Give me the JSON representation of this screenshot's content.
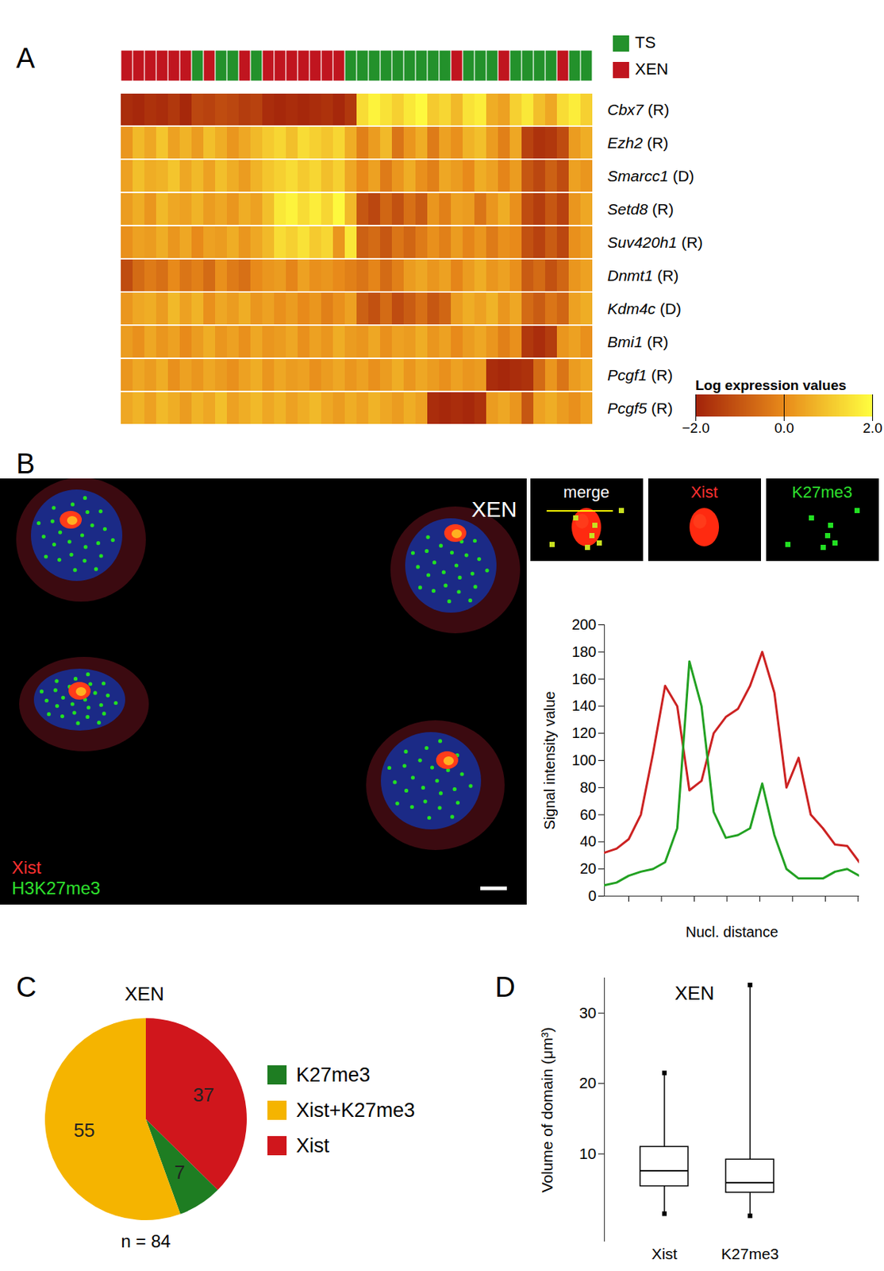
{
  "chart_data": [
    {
      "panel": "A",
      "type": "heatmap",
      "rows": [
        "Cbx7 (R)",
        "Ezh2 (R)",
        "Smarcc1 (D)",
        "Setd8 (R)",
        "Suv420h1 (R)",
        "Dnmt1 (R)",
        "Kdm4c (D)",
        "Bmi1 (R)",
        "Pcgf1 (R)",
        "Pcgf5 (R)"
      ],
      "samples": [
        "XEN",
        "XEN",
        "XEN",
        "XEN",
        "XEN",
        "XEN",
        "TS",
        "XEN",
        "TS",
        "TS",
        "XEN",
        "TS",
        "XEN",
        "XEN",
        "XEN",
        "XEN",
        "XEN",
        "XEN",
        "XEN",
        "TS",
        "TS",
        "TS",
        "TS",
        "TS",
        "TS",
        "TS",
        "TS",
        "TS",
        "XEN",
        "TS",
        "TS",
        "TS",
        "XEN",
        "TS",
        "TS",
        "TS",
        "TS",
        "XEN",
        "TS",
        "TS"
      ],
      "sample_types": [
        {
          "name": "TS",
          "color": "#23912b"
        },
        {
          "name": "XEN",
          "color": "#c0151f"
        }
      ],
      "cells": [
        [
          -1.8,
          -1.9,
          -1.7,
          -1.8,
          -1.6,
          -1.9,
          -1.3,
          -1.4,
          -1.2,
          -1.3,
          -1.5,
          -1.4,
          -1.8,
          -1.9,
          -1.8,
          -1.9,
          -1.8,
          -1.7,
          -1.9,
          -1.6,
          1.4,
          1.8,
          1.5,
          1.2,
          1.6,
          1.9,
          1.1,
          1.3,
          0.8,
          1.5,
          1.7,
          0.6,
          0.4,
          1.2,
          1.6,
          0.9,
          0.5,
          1.4,
          1.7,
          1.2
        ],
        [
          0.2,
          0.8,
          0.5,
          1.0,
          0.4,
          0.7,
          0.3,
          0.9,
          0.6,
          0.2,
          0.5,
          0.8,
          1.1,
          1.3,
          0.9,
          1.4,
          1.2,
          1.0,
          1.3,
          0.6,
          -0.2,
          0.3,
          0.8,
          -0.4,
          0.2,
          0.6,
          -0.3,
          0.4,
          0.1,
          0.7,
          0.9,
          0.3,
          -0.2,
          0.5,
          -1.4,
          -1.7,
          -1.6,
          -1.2,
          0.3,
          0.6
        ],
        [
          0.4,
          0.9,
          0.6,
          0.7,
          1.0,
          0.5,
          0.8,
          0.4,
          0.9,
          0.6,
          0.3,
          0.7,
          1.0,
          1.2,
          1.4,
          1.1,
          1.3,
          0.9,
          1.2,
          0.5,
          0.0,
          0.4,
          -0.3,
          0.2,
          0.6,
          0.1,
          -0.2,
          0.5,
          0.3,
          0.0,
          0.6,
          0.4,
          -0.1,
          0.3,
          -1.0,
          -1.3,
          -0.8,
          -1.2,
          0.4,
          0.2
        ],
        [
          0.3,
          0.6,
          0.2,
          0.8,
          0.5,
          0.4,
          0.7,
          0.3,
          0.5,
          0.2,
          0.6,
          0.4,
          0.9,
          1.6,
          1.8,
          1.4,
          1.7,
          1.3,
          1.9,
          0.8,
          -1.0,
          -1.3,
          -0.7,
          -1.1,
          -0.5,
          -0.9,
          0.2,
          -0.2,
          0.4,
          0.3,
          -0.4,
          0.2,
          0.6,
          0.1,
          -1.2,
          -1.5,
          -1.0,
          -1.4,
          0.2,
          0.5
        ],
        [
          0.1,
          0.4,
          0.3,
          0.6,
          0.2,
          0.5,
          0.0,
          0.4,
          0.3,
          0.6,
          0.2,
          0.5,
          0.8,
          1.4,
          1.2,
          1.5,
          1.1,
          1.3,
          0.2,
          1.6,
          -0.8,
          -0.6,
          -1.0,
          -0.4,
          -0.7,
          -0.3,
          0.1,
          -0.2,
          0.3,
          -0.1,
          0.2,
          -0.3,
          0.1,
          0.0,
          -1.1,
          -1.4,
          -0.9,
          -1.3,
          0.1,
          0.3
        ],
        [
          -1.2,
          -0.6,
          -0.3,
          -0.5,
          0.0,
          -0.4,
          -0.2,
          -0.6,
          0.1,
          -0.3,
          -0.5,
          0.0,
          0.2,
          0.3,
          -0.1,
          0.4,
          0.1,
          0.2,
          0.0,
          -0.2,
          -0.4,
          -0.1,
          -0.6,
          -0.2,
          0.3,
          0.5,
          0.2,
          0.4,
          -0.1,
          0.3,
          0.6,
          0.2,
          0.4,
          0.1,
          -0.9,
          -0.6,
          -1.1,
          -0.7,
          0.2,
          0.4
        ],
        [
          0.2,
          0.5,
          0.6,
          0.3,
          0.8,
          0.4,
          0.7,
          0.1,
          0.5,
          0.3,
          0.6,
          0.2,
          0.4,
          0.1,
          0.3,
          0.0,
          0.2,
          -0.2,
          0.1,
          0.4,
          -0.8,
          -1.1,
          -0.6,
          -1.2,
          -0.9,
          -0.5,
          -1.0,
          -0.7,
          0.3,
          0.6,
          0.4,
          0.7,
          0.2,
          0.5,
          -0.6,
          -0.9,
          -0.4,
          -0.7,
          0.4,
          0.6
        ],
        [
          0.3,
          0.1,
          0.5,
          0.2,
          0.4,
          0.0,
          0.3,
          0.6,
          0.2,
          0.4,
          0.1,
          0.5,
          0.2,
          0.3,
          0.5,
          0.1,
          0.4,
          0.2,
          0.6,
          0.3,
          0.2,
          0.5,
          0.1,
          0.4,
          0.3,
          0.6,
          0.2,
          0.4,
          0.0,
          0.3,
          0.5,
          0.2,
          -0.2,
          0.1,
          -1.6,
          -1.8,
          -1.5,
          0.2,
          0.4,
          0.1
        ],
        [
          0.2,
          0.5,
          0.3,
          0.6,
          0.1,
          0.4,
          0.2,
          0.5,
          0.3,
          0.1,
          0.4,
          0.6,
          0.2,
          0.5,
          0.3,
          0.4,
          0.1,
          0.3,
          0.5,
          0.2,
          0.4,
          0.1,
          0.3,
          0.6,
          0.2,
          0.5,
          0.3,
          0.1,
          0.4,
          0.2,
          0.3,
          -1.8,
          -1.9,
          -1.8,
          -1.7,
          -0.6,
          0.2,
          -0.4,
          0.3,
          0.5
        ],
        [
          0.5,
          0.7,
          0.4,
          0.8,
          0.6,
          0.3,
          0.7,
          0.5,
          0.9,
          0.4,
          0.6,
          0.8,
          0.5,
          0.7,
          0.4,
          0.6,
          0.8,
          0.5,
          0.3,
          0.6,
          0.4,
          0.7,
          0.5,
          0.3,
          0.6,
          0.4,
          -1.8,
          -1.9,
          -1.8,
          -1.9,
          -1.7,
          0.3,
          0.5,
          0.2,
          -1.0,
          0.4,
          0.6,
          0.3,
          0.1,
          0.4
        ]
      ],
      "colorbar": {
        "title": "Log expression values",
        "range": [
          -2,
          2
        ],
        "ticks": [
          -2,
          0,
          2
        ],
        "colors": [
          "#a3230a",
          "#e88a1a",
          "#ffff40"
        ]
      },
      "tick_labels": "y"
    },
    {
      "panel": "B",
      "type": "image",
      "title": "XEN",
      "annotations": [
        {
          "text": "Xist",
          "color": "#ff3030"
        },
        {
          "text": "H3K27me3",
          "color": "#2ee02e"
        }
      ],
      "insets": [
        {
          "text": "merge",
          "color": "#ffffff"
        },
        {
          "text": "Xist",
          "color": "#ff3030"
        },
        {
          "text": "K27me3",
          "color": "#2ee02e"
        }
      ]
    },
    {
      "type": "line",
      "xlabel": "Nucl. distance",
      "ylabel": "Signal intensity value",
      "x": [
        0,
        1,
        2,
        3,
        4,
        5,
        6,
        7,
        8,
        9,
        10,
        11,
        12,
        13,
        14,
        15,
        16,
        17,
        18,
        19,
        20,
        21
      ],
      "series": [
        {
          "color": "#cc2222",
          "values": [
            32,
            35,
            42,
            60,
            105,
            155,
            140,
            78,
            85,
            120,
            132,
            138,
            155,
            180,
            150,
            80,
            102,
            60,
            50,
            38,
            37,
            25
          ]
        },
        {
          "color": "#22a122",
          "values": [
            8,
            10,
            15,
            18,
            20,
            25,
            50,
            173,
            140,
            62,
            43,
            45,
            50,
            83,
            45,
            20,
            13,
            13,
            13,
            18,
            20,
            15
          ]
        }
      ],
      "xlim": [
        0,
        21
      ],
      "xticks": [
        2,
        4.7,
        7.4,
        10.1,
        12.8,
        15.5,
        18.2,
        20.9
      ],
      "ylim": [
        0,
        200
      ],
      "yticks": [
        0,
        20,
        40,
        60,
        80,
        100,
        120,
        140,
        160,
        180,
        200
      ],
      "tick_labels": "y"
    },
    {
      "panel": "C",
      "type": "pie",
      "title": "XEN",
      "caption": "n = 84",
      "categories": [
        "K27me3",
        "Xist+K27me3",
        "Xist"
      ],
      "values": [
        7,
        55,
        37
      ],
      "colors": [
        "#1e7d22",
        "#f5b400",
        "#d0161c"
      ],
      "data_labels": true,
      "legend": "right"
    },
    {
      "panel": "D",
      "type": "box",
      "title": "XEN",
      "ylabel": "Volume of domain (μm³)",
      "categories": [
        "Xist",
        "K27me3"
      ],
      "whisker_low": [
        1.5,
        1.2
      ],
      "q1": [
        5.4,
        4.5
      ],
      "median": [
        7.6,
        5.9
      ],
      "q3": [
        11,
        9.2
      ],
      "whisker_high": [
        21.5,
        34
      ],
      "ylim": [
        -2.5,
        35
      ],
      "yticks": [
        10,
        20,
        30
      ]
    }
  ]
}
